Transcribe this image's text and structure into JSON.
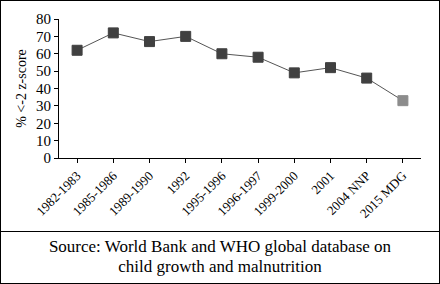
{
  "chart_data": {
    "type": "line",
    "y_label": "% <-2 z-score",
    "categories": [
      "1982-1983",
      "1985-1986",
      "1989-1990",
      "1992",
      "1995-1996",
      "1996-1997",
      "1999-2000",
      "2001",
      "2004 NNP",
      "2015 MDG"
    ],
    "values": [
      62,
      72,
      67,
      70,
      60,
      58,
      49,
      52,
      46,
      33
    ],
    "color": "#555555",
    "colors": [
      "#404040",
      "#404040",
      "#404040",
      "#404040",
      "#404040",
      "#404040",
      "#404040",
      "#404040",
      "#404040",
      "#8c8c8c"
    ],
    "marker": "square",
    "line_style": "solid",
    "ylim": [
      0,
      80
    ],
    "yticks": [
      0,
      10,
      20,
      30,
      40,
      50,
      60,
      70,
      80
    ],
    "grid": false,
    "caption": "Source: World Bank and WHO global database on child growth and malnutrition"
  }
}
